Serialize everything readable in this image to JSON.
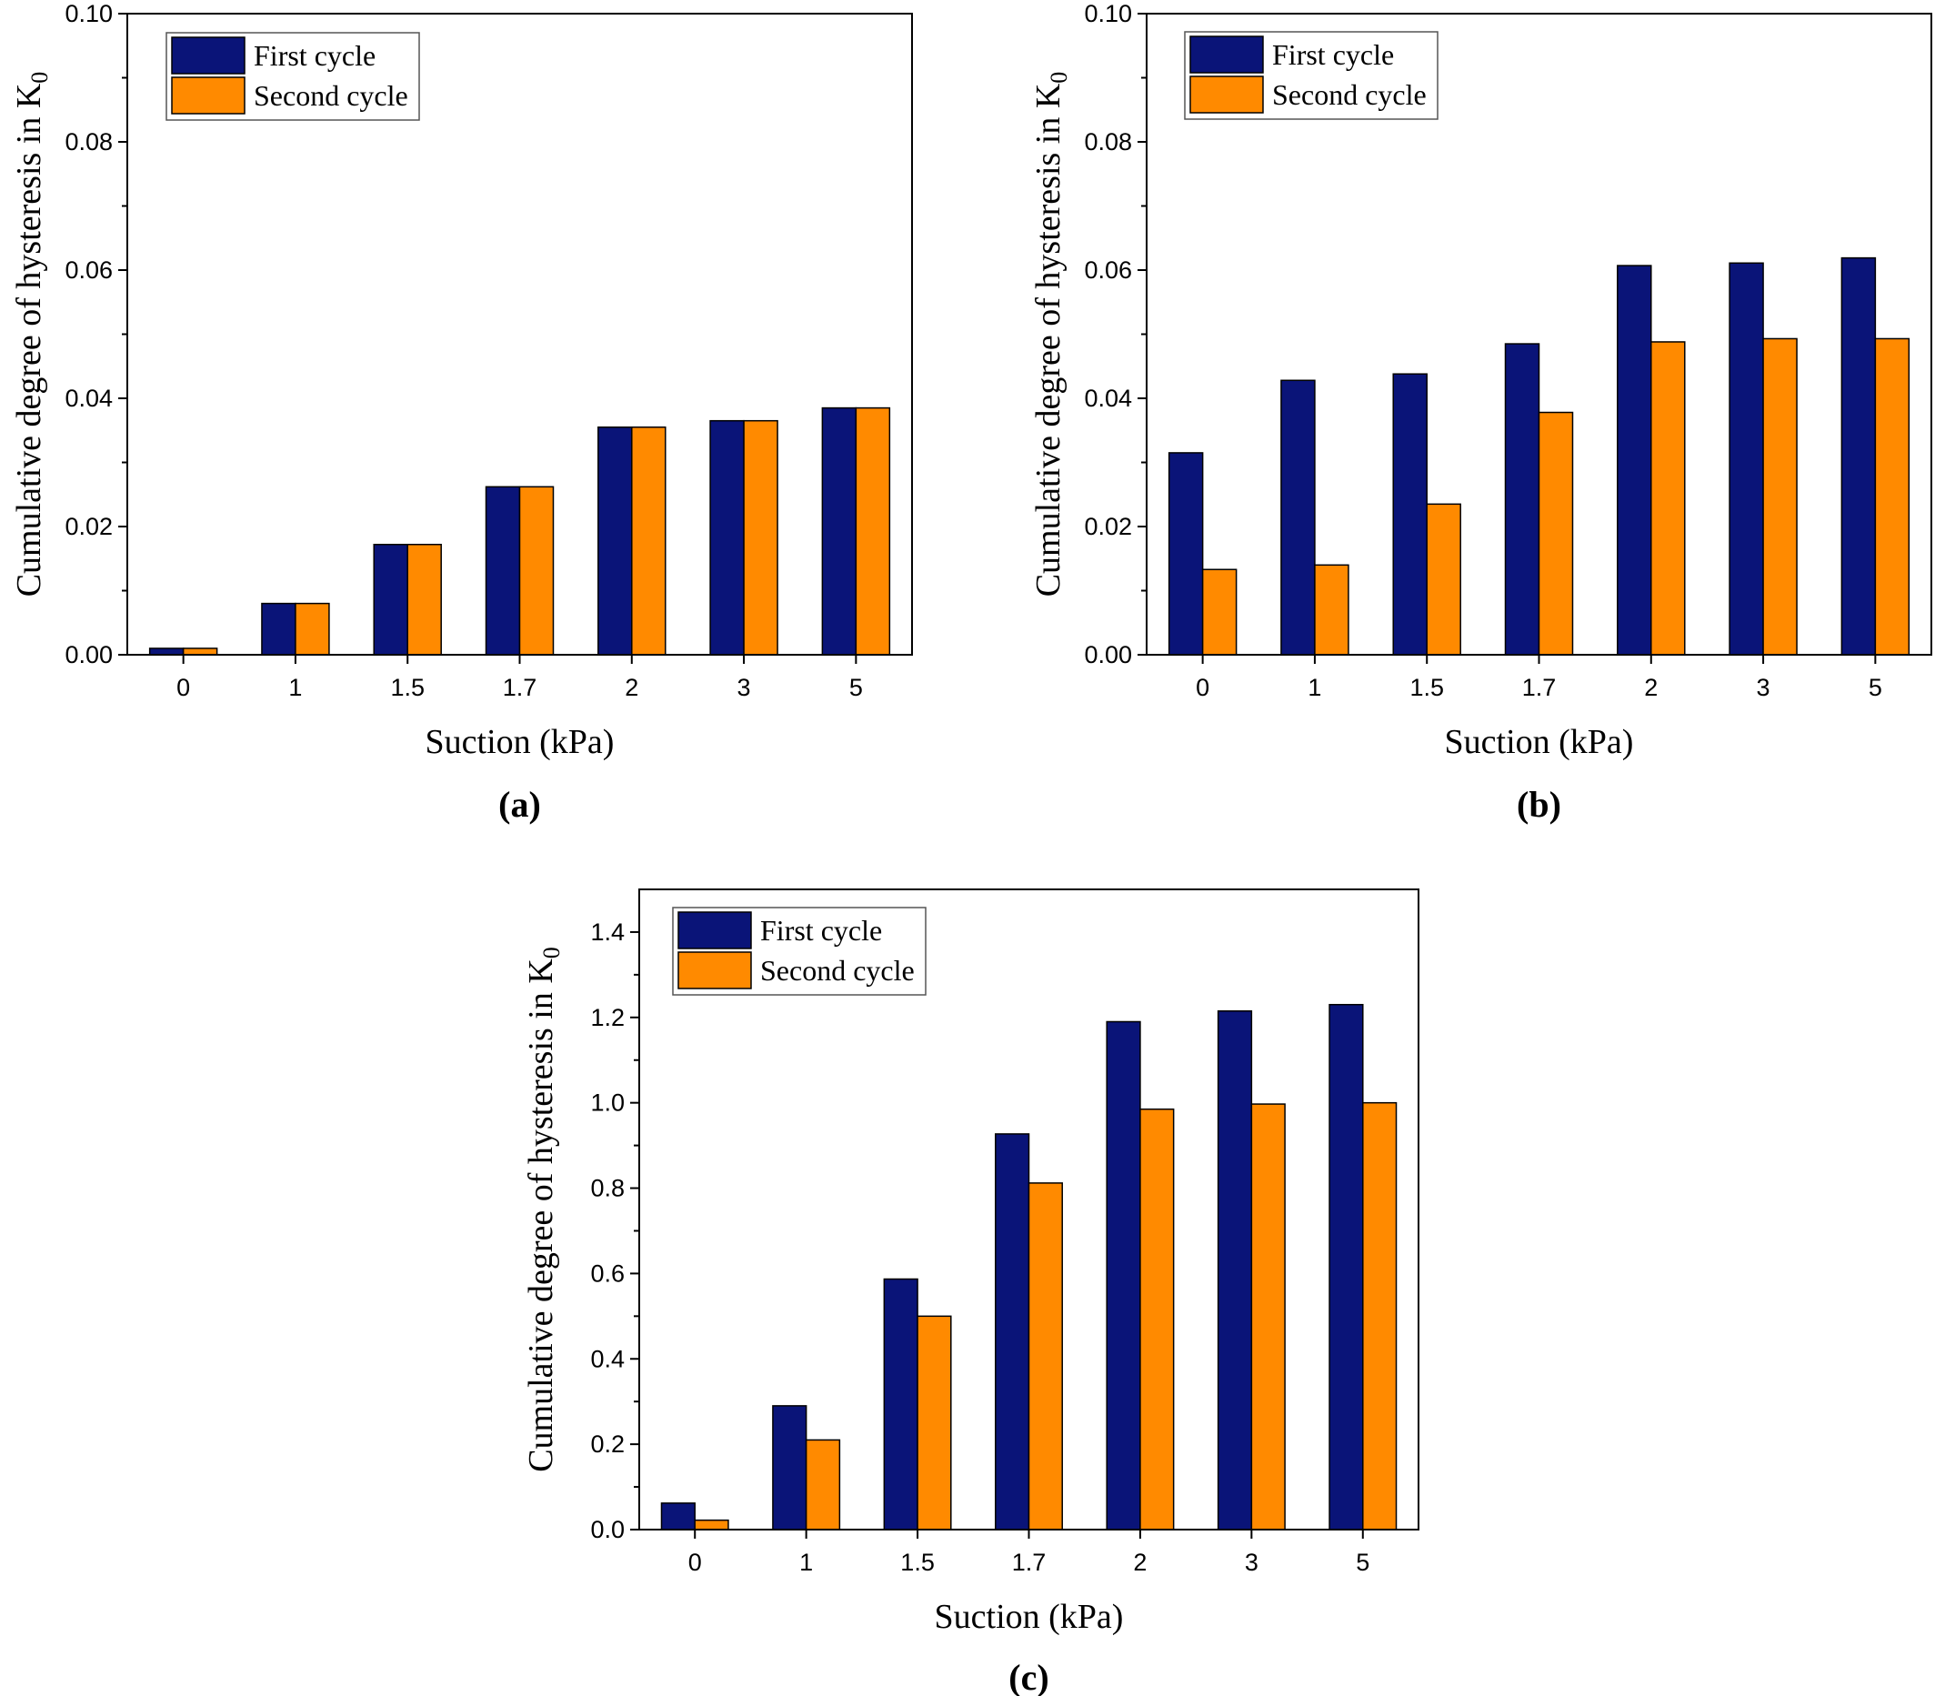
{
  "colors": {
    "first_cycle": "#0a1478",
    "second_cycle": "#ff8a00",
    "stroke": "#000000"
  },
  "chart_data": [
    {
      "type": "bar",
      "panel_label": "(a)",
      "categories": [
        "0",
        "1",
        "1.5",
        "1.7",
        "2",
        "3",
        "5"
      ],
      "xlabel": "Suction (kPa)",
      "ylabel": "Cumulative degree of hysteresis in K",
      "ylabel_subscript": "0",
      "ylim": [
        0,
        0.1
      ],
      "yticks": [
        "0.00",
        "0.02",
        "0.04",
        "0.06",
        "0.08",
        "0.10"
      ],
      "legend": "top-left",
      "grid": false,
      "series": [
        {
          "name": "First cycle",
          "values": [
            0.001,
            0.008,
            0.0172,
            0.0262,
            0.0355,
            0.0365,
            0.0385
          ]
        },
        {
          "name": "Second cycle",
          "values": [
            0.001,
            0.008,
            0.0172,
            0.0262,
            0.0355,
            0.0365,
            0.0385
          ]
        }
      ]
    },
    {
      "type": "bar",
      "panel_label": "(b)",
      "categories": [
        "0",
        "1",
        "1.5",
        "1.7",
        "2",
        "3",
        "5"
      ],
      "xlabel": "Suction (kPa)",
      "ylabel": "Cumulative degree of hysteresis in K",
      "ylabel_subscript": "0",
      "ylim": [
        0,
        0.1
      ],
      "yticks": [
        "0.00",
        "0.02",
        "0.04",
        "0.06",
        "0.08",
        "0.10"
      ],
      "legend": "top-left",
      "grid": false,
      "series": [
        {
          "name": "First cycle",
          "values": [
            0.0315,
            0.0428,
            0.0438,
            0.0485,
            0.0607,
            0.0611,
            0.0619
          ]
        },
        {
          "name": "Second cycle",
          "values": [
            0.0133,
            0.014,
            0.0235,
            0.0378,
            0.0488,
            0.0493,
            0.0493
          ]
        }
      ]
    },
    {
      "type": "bar",
      "panel_label": "(c)",
      "categories": [
        "0",
        "1",
        "1.5",
        "1.7",
        "2",
        "3",
        "5"
      ],
      "xlabel": "Suction (kPa)",
      "ylabel": "Cumulative degree of hysteresis in K",
      "ylabel_subscript": "0",
      "ylim": [
        0,
        1.5
      ],
      "yticks": [
        "0.0",
        "0.2",
        "0.4",
        "0.6",
        "0.8",
        "1.0",
        "1.2",
        "1.4"
      ],
      "legend": "top-left",
      "grid": false,
      "series": [
        {
          "name": "First cycle",
          "values": [
            0.062,
            0.29,
            0.587,
            0.927,
            1.19,
            1.215,
            1.23
          ]
        },
        {
          "name": "Second cycle",
          "values": [
            0.022,
            0.21,
            0.5,
            0.812,
            0.985,
            0.997,
            1.0
          ]
        }
      ]
    }
  ]
}
